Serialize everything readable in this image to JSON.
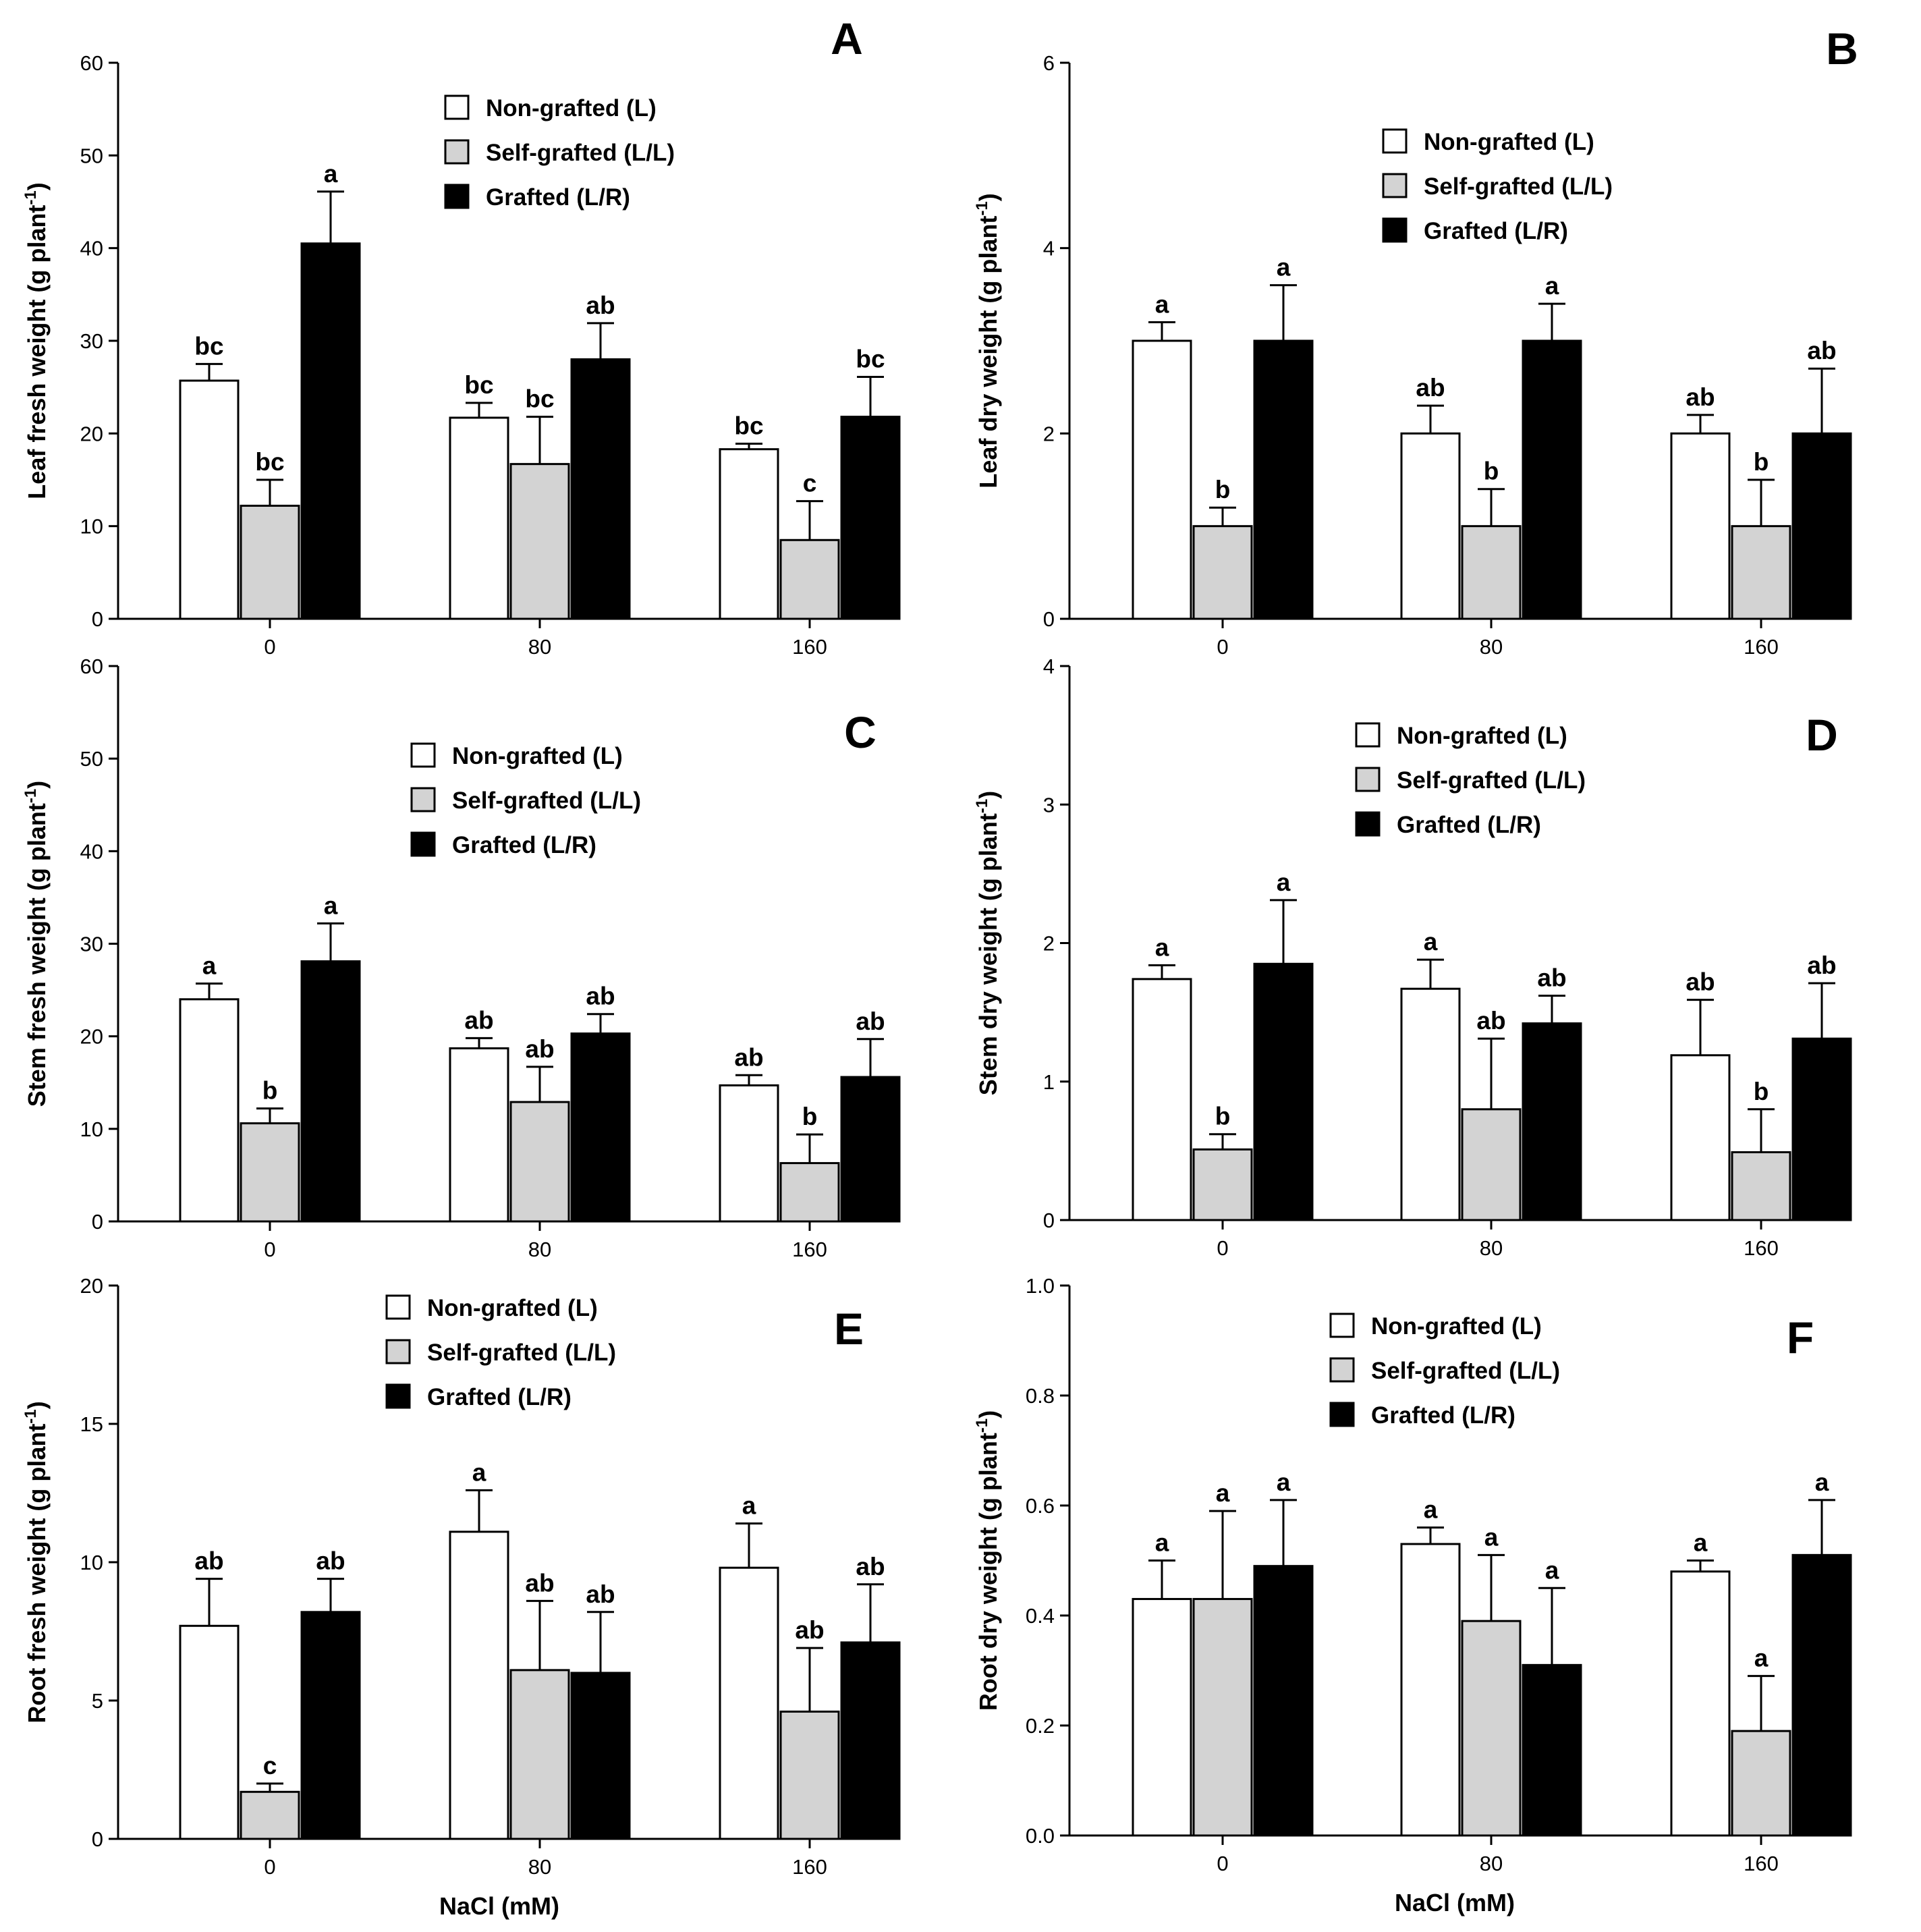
{
  "figure": {
    "x_axis_title": "NaCl (mM)"
  },
  "chart_data": [
    {
      "panel": "A",
      "type": "bar",
      "title": "",
      "xlabel": "",
      "ylabel": "Leaf fresh weight (g plant",
      "ylabel_sup": "-1",
      "ylabel_close": ")",
      "ylim": [
        0,
        60
      ],
      "yticks": [
        0,
        10,
        20,
        30,
        40,
        50,
        60
      ],
      "categories": [
        "0",
        "80",
        "160"
      ],
      "legend": [
        "Non-grafted (L)",
        "Self-grafted (L/L)",
        "Grafted (L/R)"
      ],
      "series": [
        {
          "name": "Non-grafted (L)",
          "color": "#ffffff",
          "values": [
            25.7,
            21.7,
            18.3
          ],
          "errors": [
            1.8,
            1.6,
            0.6
          ],
          "labels": [
            "bc",
            "bc",
            "bc"
          ]
        },
        {
          "name": "Self-grafted (L/L)",
          "color": "#d3d3d3",
          "values": [
            12.2,
            16.7,
            8.5
          ],
          "errors": [
            2.8,
            5.1,
            4.2
          ],
          "labels": [
            "bc",
            "bc",
            "c"
          ]
        },
        {
          "name": "Grafted (L/R)",
          "color": "#000000",
          "values": [
            40.5,
            28.0,
            21.8
          ],
          "errors": [
            5.6,
            3.9,
            4.3
          ],
          "labels": [
            "a",
            "ab",
            "bc"
          ]
        }
      ]
    },
    {
      "panel": "B",
      "type": "bar",
      "title": "",
      "xlabel": "",
      "ylabel": "Leaf dry weight (g plant",
      "ylabel_sup": "-1",
      "ylabel_close": ")",
      "ylim": [
        0,
        6
      ],
      "yticks": [
        0,
        2,
        4,
        6
      ],
      "categories": [
        "0",
        "80",
        "160"
      ],
      "legend": [
        "Non-grafted (L)",
        "Self-grafted (L/L)",
        "Grafted (L/R)"
      ],
      "series": [
        {
          "name": "Non-grafted (L)",
          "color": "#ffffff",
          "values": [
            3.0,
            2.0,
            2.0
          ],
          "errors": [
            0.2,
            0.3,
            0.2
          ],
          "labels": [
            "a",
            "ab",
            "ab"
          ]
        },
        {
          "name": "Self-grafted (L/L)",
          "color": "#d3d3d3",
          "values": [
            1.0,
            1.0,
            1.0
          ],
          "errors": [
            0.2,
            0.4,
            0.5
          ],
          "labels": [
            "b",
            "b",
            "b"
          ]
        },
        {
          "name": "Grafted (L/R)",
          "color": "#000000",
          "values": [
            3.0,
            3.0,
            2.0
          ],
          "errors": [
            0.6,
            0.4,
            0.7
          ],
          "labels": [
            "a",
            "a",
            "ab"
          ]
        }
      ]
    },
    {
      "panel": "C",
      "type": "bar",
      "title": "",
      "xlabel": "",
      "ylabel": "Stem fresh weight (g plant",
      "ylabel_sup": "-1",
      "ylabel_close": ")",
      "ylim": [
        0,
        60
      ],
      "yticks": [
        0,
        10,
        20,
        30,
        40,
        50,
        60
      ],
      "categories": [
        "0",
        "80",
        "160"
      ],
      "legend": [
        "Non-grafted (L)",
        "Self-grafted (L/L)",
        "Grafted (L/R)"
      ],
      "series": [
        {
          "name": "Non-grafted (L)",
          "color": "#ffffff",
          "values": [
            24.0,
            18.7,
            14.7
          ],
          "errors": [
            1.7,
            1.1,
            1.1
          ],
          "labels": [
            "a",
            "ab",
            "ab"
          ]
        },
        {
          "name": "Self-grafted (L/L)",
          "color": "#d3d3d3",
          "values": [
            10.6,
            12.9,
            6.3
          ],
          "errors": [
            1.6,
            3.8,
            3.1
          ],
          "labels": [
            "b",
            "ab",
            "b"
          ]
        },
        {
          "name": "Grafted (L/R)",
          "color": "#000000",
          "values": [
            28.1,
            20.3,
            15.6
          ],
          "errors": [
            4.1,
            2.1,
            4.1
          ],
          "labels": [
            "a",
            "ab",
            "ab"
          ]
        }
      ]
    },
    {
      "panel": "D",
      "type": "bar",
      "title": "",
      "xlabel": "",
      "ylabel": "Stem dry weight (g plant",
      "ylabel_sup": "-1",
      "ylabel_close": ")",
      "ylim": [
        0,
        4
      ],
      "yticks": [
        0,
        1,
        2,
        3,
        4
      ],
      "categories": [
        "0",
        "80",
        "160"
      ],
      "legend": [
        "Non-grafted (L)",
        "Self-grafted (L/L)",
        "Grafted (L/R)"
      ],
      "series": [
        {
          "name": "Non-grafted (L)",
          "color": "#ffffff",
          "values": [
            1.74,
            1.67,
            1.19
          ],
          "errors": [
            0.1,
            0.21,
            0.4
          ],
          "labels": [
            "a",
            "a",
            "ab"
          ]
        },
        {
          "name": "Self-grafted (L/L)",
          "color": "#d3d3d3",
          "values": [
            0.51,
            0.8,
            0.49
          ],
          "errors": [
            0.11,
            0.51,
            0.31
          ],
          "labels": [
            "b",
            "ab",
            "b"
          ]
        },
        {
          "name": "Grafted (L/R)",
          "color": "#000000",
          "values": [
            1.85,
            1.42,
            1.31
          ],
          "errors": [
            0.46,
            0.2,
            0.4
          ],
          "labels": [
            "a",
            "ab",
            "ab"
          ]
        }
      ]
    },
    {
      "panel": "E",
      "type": "bar",
      "title": "",
      "xlabel": "NaCl (mM)",
      "ylabel": "Root fresh weight (g plant",
      "ylabel_sup": "-1",
      "ylabel_close": ")",
      "ylim": [
        0,
        20
      ],
      "yticks": [
        0,
        5,
        10,
        15,
        20
      ],
      "categories": [
        "0",
        "80",
        "160"
      ],
      "legend": [
        "Non-grafted (L)",
        "Self-grafted (L/L)",
        "Grafted (L/R)"
      ],
      "series": [
        {
          "name": "Non-grafted (L)",
          "color": "#ffffff",
          "values": [
            7.7,
            11.1,
            9.8
          ],
          "errors": [
            1.7,
            1.5,
            1.6
          ],
          "labels": [
            "ab",
            "a",
            "a"
          ]
        },
        {
          "name": "Self-grafted (L/L)",
          "color": "#d3d3d3",
          "values": [
            1.7,
            6.1,
            4.6
          ],
          "errors": [
            0.3,
            2.5,
            2.3
          ],
          "labels": [
            "c",
            "ab",
            "ab"
          ]
        },
        {
          "name": "Grafted (L/R)",
          "color": "#000000",
          "values": [
            8.2,
            6.0,
            7.1
          ],
          "errors": [
            1.2,
            2.2,
            2.1
          ],
          "labels": [
            "ab",
            "ab",
            "ab"
          ]
        }
      ]
    },
    {
      "panel": "F",
      "type": "bar",
      "title": "",
      "xlabel": "NaCl (mM)",
      "ylabel": "Root dry weight (g plant",
      "ylabel_sup": "-1",
      "ylabel_close": ")",
      "ylim": [
        0,
        1.0
      ],
      "yticks": [
        "0.0",
        "0.2",
        "0.4",
        "0.6",
        "0.8",
        "1.0"
      ],
      "categories": [
        "0",
        "80",
        "160"
      ],
      "legend": [
        "Non-grafted (L)",
        "Self-grafted (L/L)",
        "Grafted (L/R)"
      ],
      "series": [
        {
          "name": "Non-grafted (L)",
          "color": "#ffffff",
          "values": [
            0.43,
            0.53,
            0.48
          ],
          "errors": [
            0.07,
            0.03,
            0.02
          ],
          "labels": [
            "a",
            "a",
            "a"
          ]
        },
        {
          "name": "Self-grafted (L/L)",
          "color": "#d3d3d3",
          "values": [
            0.43,
            0.39,
            0.19
          ],
          "errors": [
            0.16,
            0.12,
            0.1
          ],
          "labels": [
            "a",
            "a",
            "a"
          ]
        },
        {
          "name": "Grafted (L/R)",
          "color": "#000000",
          "values": [
            0.49,
            0.31,
            0.51
          ],
          "errors": [
            0.12,
            0.14,
            0.1
          ],
          "labels": [
            "a",
            "a",
            "a"
          ]
        }
      ]
    }
  ]
}
